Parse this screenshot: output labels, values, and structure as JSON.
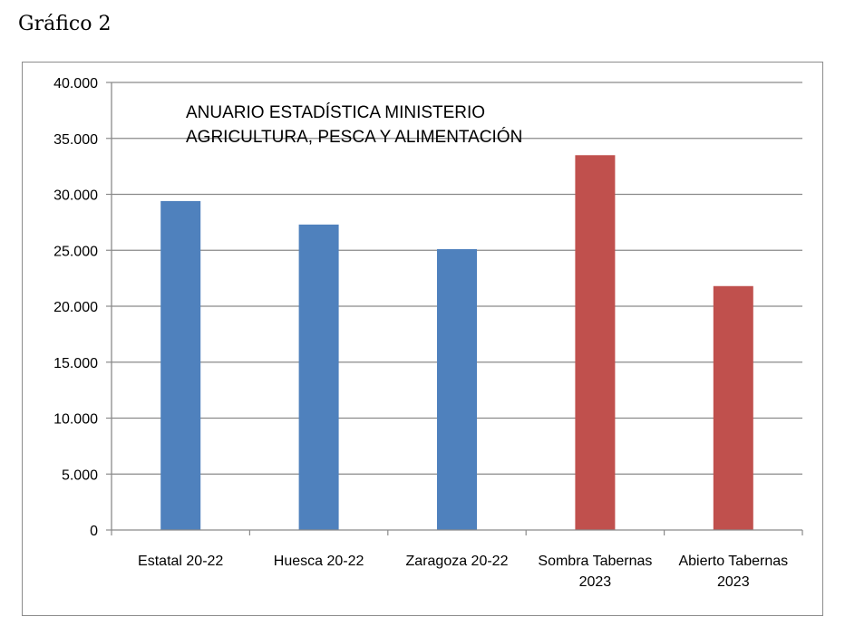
{
  "caption": "Gráfico 2",
  "chart_data": {
    "type": "bar",
    "title": "",
    "xlabel": "",
    "ylabel": "",
    "ylim": [
      0,
      40000
    ],
    "y_ticks": [
      "0",
      "5.000",
      "10.000",
      "15.000",
      "20.000",
      "25.000",
      "30.000",
      "35.000",
      "40.000"
    ],
    "grid": true,
    "annotation": [
      "ANUARIO ESTADÍSTICA MINISTERIO",
      "AGRICULTURA, PESCA Y ALIMENTACIÓN"
    ],
    "categories": [
      [
        "Estatal 20-22"
      ],
      [
        "Huesca 20-22"
      ],
      [
        "Zaragoza 20-22"
      ],
      [
        "Sombra Tabernas",
        "2023"
      ],
      [
        "Abierto Tabernas",
        "2023"
      ]
    ],
    "values": [
      29400,
      27300,
      25100,
      33500,
      21800
    ],
    "colors": [
      "#4F81BD",
      "#4F81BD",
      "#4F81BD",
      "#C0504D",
      "#C0504D"
    ]
  }
}
